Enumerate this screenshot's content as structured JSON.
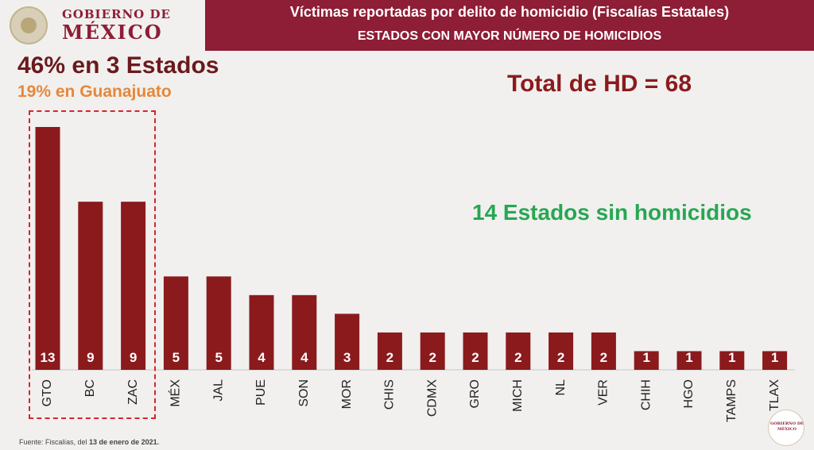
{
  "header": {
    "gov_line1": "GOBIERNO DE",
    "gov_line2": "MÉXICO",
    "title": "Víctimas reportadas por delito de homicidio (Fiscalías Estatales)",
    "subtitle": "ESTADOS CON MAYOR NÚMERO DE HOMICIDIOS"
  },
  "annotations": {
    "top3": "46% en 3 Estados",
    "guanajuato": "19% en Guanajuato",
    "total": "Total de HD = 68",
    "zero_states": "14 Estados sin homicidios"
  },
  "footer": {
    "source_prefix": "Fuente: Fiscalías, del ",
    "source_date": "13 de enero de 2021.",
    "corner_logo_line1": "GOBIERNO DE",
    "corner_logo_line2": "MÉXICO"
  },
  "colors": {
    "bar": "#8b1a1d",
    "header": "#8e1d36",
    "highlight_box": "#d8232f"
  },
  "chart_data": {
    "type": "bar",
    "title": "Víctimas reportadas por delito de homicidio (Fiscalías Estatales)",
    "categories": [
      "GTO",
      "BC",
      "ZAC",
      "MÉX",
      "JAL",
      "PUE",
      "SON",
      "MOR",
      "CHIS",
      "CDMX",
      "GRO",
      "MICH",
      "NL",
      "VER",
      "CHIH",
      "HGO",
      "TAMPS",
      "TLAX"
    ],
    "values": [
      13,
      9,
      9,
      5,
      5,
      4,
      4,
      3,
      2,
      2,
      2,
      2,
      2,
      2,
      1,
      1,
      1,
      1
    ],
    "xlabel": "",
    "ylabel": "",
    "ylim": [
      0,
      13
    ],
    "grid": false,
    "legend": "none"
  }
}
